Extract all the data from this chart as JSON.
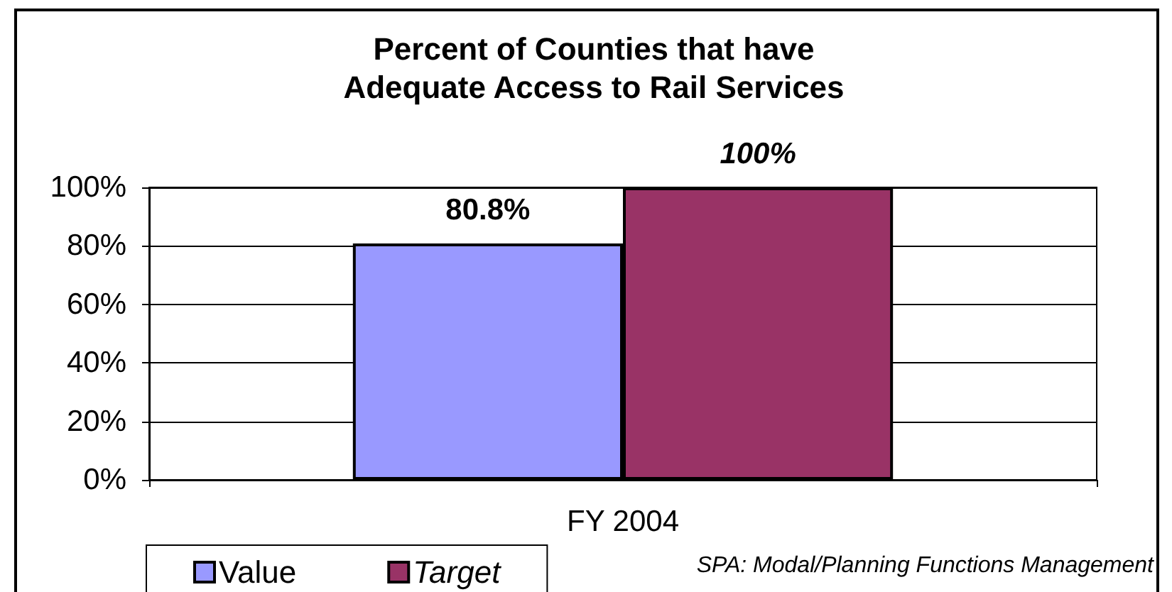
{
  "chart_data": {
    "type": "bar",
    "title": "Percent of Counties that have Adequate Access to Rail Services",
    "categories": [
      "FY 2004"
    ],
    "series": [
      {
        "name": "Value",
        "color": "#9999ff",
        "values": [
          80.8
        ],
        "value_labels": [
          "80.8%"
        ]
      },
      {
        "name": "Target",
        "color": "#993366",
        "values": [
          100
        ],
        "value_labels": [
          "100%"
        ]
      }
    ],
    "ylim": [
      0,
      100
    ],
    "yticks": [
      {
        "value": 0,
        "label": "0%"
      },
      {
        "value": 20,
        "label": "20%"
      },
      {
        "value": 40,
        "label": "40%"
      },
      {
        "value": 60,
        "label": "60%"
      },
      {
        "value": 80,
        "label": "80%"
      },
      {
        "value": 100,
        "label": "100%"
      }
    ],
    "grid": "y",
    "legend": "bottom left",
    "annotations": [
      "SPA: Modal/Planning Functions Management"
    ]
  }
}
